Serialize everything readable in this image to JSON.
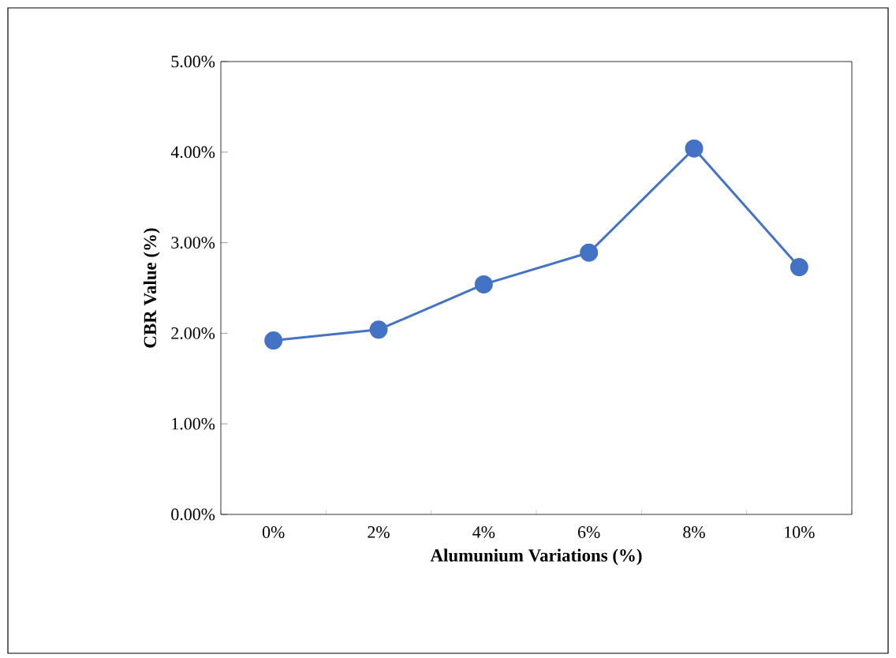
{
  "chart_data": {
    "type": "line",
    "xlabel": "Alumunium Variations (%)",
    "ylabel": "CBR Value (%)",
    "categories": [
      "0%",
      "2%",
      "4%",
      "6%",
      "8%",
      "10%"
    ],
    "series": [
      {
        "color": "#4472c4",
        "values": [
          1.92,
          2.04,
          2.54,
          2.89,
          4.04,
          2.73
        ]
      }
    ],
    "ylim": [
      0,
      5
    ],
    "yticks": [
      {
        "value": 0,
        "label": "0.00%"
      },
      {
        "value": 1,
        "label": "1.00%"
      },
      {
        "value": 2,
        "label": "2.00%"
      },
      {
        "value": 3,
        "label": "3.00%"
      },
      {
        "value": 4,
        "label": "4.00%"
      },
      {
        "value": 5,
        "label": "5.00%"
      }
    ],
    "marker": "circle",
    "line_style": "solid",
    "grid": false
  }
}
